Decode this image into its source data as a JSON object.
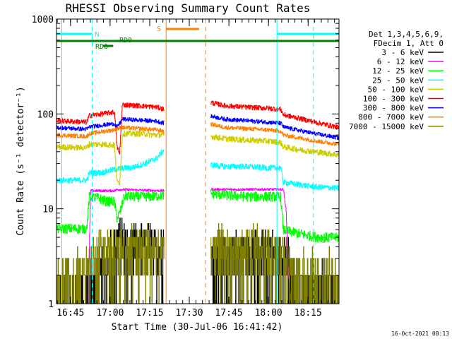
{
  "chart_data": {
    "type": "line",
    "title": "RHESSI Observing Summary Count Rates",
    "xlabel": "Start Time (30-Jul-06 16:41:42)",
    "ylabel": "Count Rate (s⁻¹ detector⁻¹)",
    "yscale": "log",
    "ylim": [
      1,
      1000
    ],
    "xlim_min": [
      -2,
      105
    ],
    "x_unit": "minutes after 16:41:42",
    "x_ticks": [
      {
        "t": 3.3,
        "label": "16:45"
      },
      {
        "t": 18.3,
        "label": "17:00"
      },
      {
        "t": 33.3,
        "label": "17:15"
      },
      {
        "t": 48.3,
        "label": "17:30"
      },
      {
        "t": 63.3,
        "label": "17:45"
      },
      {
        "t": 78.3,
        "label": "18:00"
      },
      {
        "t": 93.3,
        "label": "18:15"
      }
    ],
    "y_ticks": [
      {
        "v": 1,
        "label": "1"
      },
      {
        "v": 10,
        "label": "10"
      },
      {
        "v": 100,
        "label": "100"
      },
      {
        "v": 1000,
        "label": "1000"
      }
    ],
    "legend": {
      "position": "top-right",
      "header": [
        "Det 1,3,4,5,6,9,",
        "FDecim 1, Att 0"
      ],
      "entries": [
        {
          "label": "3 - 6 keV",
          "color": "#000000"
        },
        {
          "label": "6 - 12 keV",
          "color": "#ff00ff"
        },
        {
          "label": "12 - 25 keV",
          "color": "#00ff00"
        },
        {
          "label": "25 - 50 keV",
          "color": "#00ffff"
        },
        {
          "label": "50 - 100 keV",
          "color": "#cccc00"
        },
        {
          "label": "100 - 300 keV",
          "color": "#ff0000"
        },
        {
          "label": "300 - 800 keV",
          "color": "#0000ff"
        },
        {
          "label": "800 - 7000 keV",
          "color": "#ff8000"
        },
        {
          "label": "7000 - 15000 keV",
          "color": "#808000"
        }
      ]
    },
    "segments": [
      {
        "t0": -2,
        "t1": 38.8
      },
      {
        "t0": 56.5,
        "t1": 105
      }
    ],
    "series": [
      {
        "name": "3 - 6 keV",
        "color": "#000000",
        "noise": 0.55,
        "points": [
          [
            -2,
            1
          ],
          [
            9,
            1
          ],
          [
            9.5,
            1.2
          ],
          [
            13,
            1.6
          ],
          [
            16,
            2.4
          ],
          [
            20,
            3.6
          ],
          [
            23,
            4.5
          ],
          [
            26,
            4.0
          ],
          [
            30,
            4.0
          ],
          [
            34,
            3.8
          ],
          [
            38.8,
            3.5
          ],
          [
            56.5,
            2.8
          ],
          [
            62,
            3.2
          ],
          [
            70,
            3.5
          ],
          [
            78,
            3.5
          ],
          [
            80,
            3.6
          ],
          [
            85,
            2.4
          ],
          [
            90,
            1.6
          ],
          [
            94,
            1.2
          ],
          [
            98,
            1.0
          ],
          [
            105,
            1.0
          ]
        ]
      },
      {
        "name": "6 - 12 keV",
        "color": "#ff00ff",
        "noise": 0.03,
        "points": [
          [
            10,
            1
          ],
          [
            11,
            15.5
          ],
          [
            20,
            15.5
          ],
          [
            21,
            16
          ],
          [
            38.8,
            15.5
          ],
          [
            56.5,
            16
          ],
          [
            84,
            16
          ],
          [
            85,
            10
          ],
          [
            86,
            2
          ],
          [
            87,
            1
          ]
        ]
      },
      {
        "name": "12 - 25 keV",
        "color": "#00ff00",
        "noise": 0.12,
        "points": [
          [
            -2,
            6.2
          ],
          [
            9.5,
            6.2
          ],
          [
            10.5,
            13.5
          ],
          [
            14,
            13
          ],
          [
            17,
            12
          ],
          [
            20,
            12
          ],
          [
            21,
            8
          ],
          [
            22,
            9
          ],
          [
            24,
            14
          ],
          [
            26,
            13.5
          ],
          [
            30,
            13.5
          ],
          [
            34,
            13.5
          ],
          [
            38.8,
            14
          ],
          [
            56.5,
            14.5
          ],
          [
            62,
            14
          ],
          [
            70,
            13.5
          ],
          [
            78,
            13.5
          ],
          [
            83,
            13.5
          ],
          [
            84,
            6
          ],
          [
            90,
            5.5
          ],
          [
            94,
            5.2
          ],
          [
            98,
            5.0
          ],
          [
            105,
            5.0
          ]
        ]
      },
      {
        "name": "25 - 50 keV",
        "color": "#00ffff",
        "noise": 0.07,
        "points": [
          [
            -2,
            20
          ],
          [
            9.5,
            20
          ],
          [
            10.5,
            24
          ],
          [
            15,
            24
          ],
          [
            20,
            26
          ],
          [
            24,
            27
          ],
          [
            26,
            27
          ],
          [
            30,
            29
          ],
          [
            36,
            34
          ],
          [
            38.8,
            42
          ],
          [
            56.5,
            29
          ],
          [
            62,
            28
          ],
          [
            70,
            28
          ],
          [
            78,
            27
          ],
          [
            83,
            27
          ],
          [
            84,
            19
          ],
          [
            90,
            18
          ],
          [
            96,
            17
          ],
          [
            105,
            16.5
          ]
        ]
      },
      {
        "name": "50 - 100 keV",
        "color": "#cccc00",
        "noise": 0.07,
        "points": [
          [
            -2,
            45
          ],
          [
            9.5,
            44
          ],
          [
            10.5,
            48
          ],
          [
            15,
            48
          ],
          [
            20,
            47
          ],
          [
            21,
            19
          ],
          [
            22,
            19
          ],
          [
            23,
            62
          ],
          [
            30,
            62
          ],
          [
            36,
            60
          ],
          [
            38.8,
            60
          ],
          [
            56.5,
            58
          ],
          [
            62,
            55
          ],
          [
            70,
            53
          ],
          [
            78,
            52
          ],
          [
            83,
            50
          ],
          [
            84,
            45
          ],
          [
            90,
            42
          ],
          [
            96,
            40
          ],
          [
            105,
            37
          ]
        ]
      },
      {
        "name": "100 - 300 keV",
        "color": "#ff0000",
        "noise": 0.06,
        "points": [
          [
            -2,
            85
          ],
          [
            9.5,
            82
          ],
          [
            10.5,
            96
          ],
          [
            15,
            100
          ],
          [
            20,
            105
          ],
          [
            21,
            45
          ],
          [
            22,
            38
          ],
          [
            23,
            125
          ],
          [
            30,
            122
          ],
          [
            36,
            118
          ],
          [
            38.8,
            112
          ],
          [
            56.5,
            132
          ],
          [
            62,
            122
          ],
          [
            70,
            118
          ],
          [
            78,
            115
          ],
          [
            83,
            112
          ],
          [
            84,
            98
          ],
          [
            90,
            90
          ],
          [
            96,
            82
          ],
          [
            105,
            72
          ]
        ]
      },
      {
        "name": "300 - 800 keV",
        "color": "#0000ff",
        "noise": 0.05,
        "points": [
          [
            -2,
            72
          ],
          [
            9.5,
            69
          ],
          [
            10.5,
            73
          ],
          [
            15,
            76
          ],
          [
            20,
            79
          ],
          [
            21,
            72
          ],
          [
            23,
            88
          ],
          [
            30,
            86
          ],
          [
            36,
            84
          ],
          [
            38.8,
            80
          ],
          [
            56.5,
            95
          ],
          [
            62,
            88
          ],
          [
            70,
            85
          ],
          [
            78,
            82
          ],
          [
            83,
            80
          ],
          [
            84,
            73
          ],
          [
            90,
            67
          ],
          [
            96,
            62
          ],
          [
            105,
            56
          ]
        ]
      },
      {
        "name": "800 - 7000 keV",
        "color": "#ff8000",
        "noise": 0.05,
        "points": [
          [
            -2,
            60
          ],
          [
            9.5,
            58
          ],
          [
            10.5,
            62
          ],
          [
            15,
            65
          ],
          [
            20,
            68
          ],
          [
            21,
            70
          ],
          [
            23,
            72
          ],
          [
            30,
            70
          ],
          [
            36,
            68
          ],
          [
            38.8,
            66
          ],
          [
            56.5,
            78
          ],
          [
            62,
            72
          ],
          [
            70,
            70
          ],
          [
            78,
            68
          ],
          [
            83,
            66
          ],
          [
            84,
            60
          ],
          [
            90,
            56
          ],
          [
            96,
            52
          ],
          [
            105,
            48
          ]
        ]
      },
      {
        "name": "7000 - 15000 keV",
        "color": "#808000",
        "noise": 0.6,
        "points": [
          [
            -2,
            1.6
          ],
          [
            4,
            1.8
          ],
          [
            9,
            2.2
          ],
          [
            11,
            2.8
          ],
          [
            15,
            3.0
          ],
          [
            19,
            3.3
          ],
          [
            22,
            3.6
          ],
          [
            26,
            3.8
          ],
          [
            30,
            3.8
          ],
          [
            34,
            3.7
          ],
          [
            38.8,
            3.6
          ],
          [
            56.5,
            3.2
          ],
          [
            62,
            3.4
          ],
          [
            70,
            3.5
          ],
          [
            78,
            3.4
          ],
          [
            82,
            3.2
          ],
          [
            85,
            2.4
          ],
          [
            90,
            2.0
          ],
          [
            94,
            1.8
          ],
          [
            98,
            1.6
          ],
          [
            105,
            1.5
          ]
        ]
      }
    ],
    "annotations": {
      "flag_lines": [
        {
          "label": "N",
          "color": "#00ffff",
          "segments": [
            [
              -2,
              11.5
            ],
            [
              81.5,
              105
            ]
          ],
          "level": 1.5
        },
        {
          "label": "S",
          "color": "#ff8000",
          "segments": [
            [
              39.5,
              52
            ]
          ],
          "level": 5.5
        },
        {
          "label": "RD0",
          "color": "#008000",
          "segments": [
            [
              -2,
              105
            ]
          ],
          "level": 0
        },
        {
          "label": "RD6",
          "color": "#008000",
          "segments": [
            [
              15.5,
              19.5
            ]
          ],
          "level": -1.6
        }
      ],
      "vertical_lines": [
        {
          "t": 0,
          "color": "#00ffff",
          "style": "solid"
        },
        {
          "t": 11.5,
          "color": "#00ffff",
          "style": "dashed"
        },
        {
          "t": 81.5,
          "color": "#00ffff",
          "style": "solid"
        },
        {
          "t": 95.3,
          "color": "#00ffff",
          "style": "dashed"
        },
        {
          "t": 39.5,
          "color": "#ff8000",
          "style": "solid"
        },
        {
          "t": 54.5,
          "color": "#ff8000",
          "style": "dashed"
        }
      ]
    },
    "timestamp": "16-Oct-2021 08:13"
  }
}
